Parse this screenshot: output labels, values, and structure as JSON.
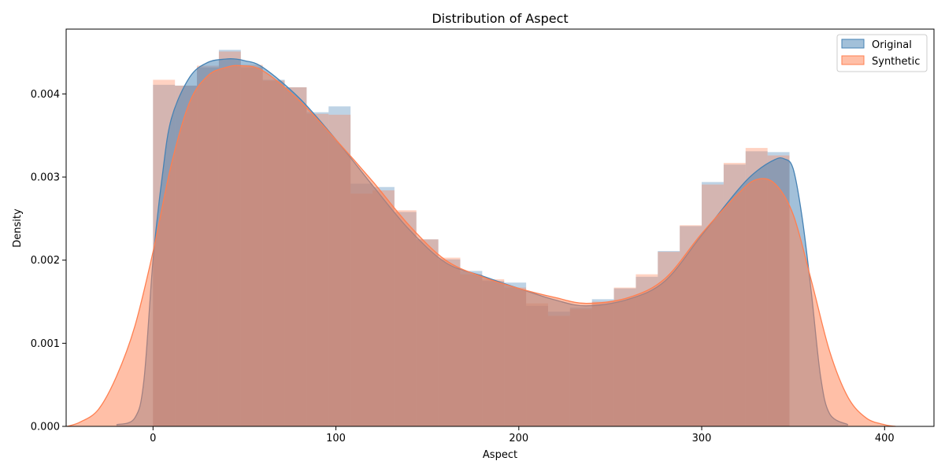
{
  "chart_data": {
    "type": "area",
    "title": "Distribution of Aspect",
    "xlabel": "Aspect",
    "ylabel": "Density",
    "xlim": [
      -47.5,
      427
    ],
    "ylim": [
      0,
      0.00478
    ],
    "xticks": [
      0,
      100,
      200,
      300,
      400
    ],
    "yticks": [
      0.0,
      0.001,
      0.002,
      0.003,
      0.004
    ],
    "ytick_labels": [
      "0.000",
      "0.001",
      "0.002",
      "0.003",
      "0.004"
    ],
    "legend_position": "top-right",
    "grid": false,
    "bin_edges": [
      0,
      12,
      24,
      36,
      48,
      60,
      72,
      84,
      96,
      108,
      120,
      132,
      144,
      156,
      168,
      180,
      192,
      204,
      216,
      228,
      240,
      252,
      264,
      276,
      288,
      300,
      312,
      324,
      336,
      348,
      360
    ],
    "series": [
      {
        "name": "Original",
        "color": "#4682b4",
        "hist_values": [
          0.00411,
          0.0041,
          0.00432,
          0.00453,
          0.00432,
          0.00417,
          0.00408,
          0.00378,
          0.00385,
          0.00292,
          0.00288,
          0.00258,
          0.00225,
          0.00201,
          0.00187,
          0.00175,
          0.00173,
          0.00145,
          0.00138,
          0.00143,
          0.00153,
          0.00166,
          0.0018,
          0.00211,
          0.00241,
          0.00294,
          0.00315,
          0.00331,
          0.0033,
          0.0
        ],
        "kde": {
          "x": [
            -20,
            -10,
            -5,
            0,
            5,
            10,
            20,
            30,
            40,
            45,
            50,
            60,
            80,
            100,
            120,
            140,
            160,
            180,
            200,
            220,
            237,
            260,
            280,
            300,
            320,
            330,
            340,
            345,
            350,
            355,
            360,
            365,
            370,
            380
          ],
          "y": [
            2e-05,
            0.0001,
            0.00055,
            0.002,
            0.003,
            0.0037,
            0.0042,
            0.00438,
            0.00442,
            0.00442,
            0.0044,
            0.00432,
            0.00395,
            0.00345,
            0.0029,
            0.00237,
            0.00197,
            0.00181,
            0.00166,
            0.00152,
            0.00145,
            0.00153,
            0.00175,
            0.0023,
            0.00285,
            0.00307,
            0.00321,
            0.00322,
            0.0031,
            0.0025,
            0.0016,
            0.0006,
            0.00015,
            2e-05
          ]
        }
      },
      {
        "name": "Synthetic",
        "color": "#ff7f50",
        "hist_values": [
          0.00417,
          0.0041,
          0.00434,
          0.00451,
          0.00435,
          0.00416,
          0.00408,
          0.00376,
          0.00375,
          0.0028,
          0.00284,
          0.0026,
          0.00225,
          0.00203,
          0.00183,
          0.00177,
          0.00167,
          0.00148,
          0.00133,
          0.00141,
          0.0015,
          0.00167,
          0.00183,
          0.0021,
          0.00242,
          0.00291,
          0.00317,
          0.00335,
          0.00326,
          0.0
        ],
        "kde": {
          "x": [
            -47,
            -40,
            -30,
            -20,
            -10,
            0,
            10,
            20,
            30,
            40,
            48,
            60,
            80,
            100,
            120,
            140,
            160,
            180,
            200,
            220,
            237,
            260,
            280,
            300,
            320,
            330,
            340,
            350,
            360,
            370,
            380,
            390,
            400,
            406
          ],
          "y": [
            0.0,
            5e-05,
            0.0002,
            0.0006,
            0.0012,
            0.0021,
            0.00315,
            0.0039,
            0.00422,
            0.00432,
            0.00434,
            0.00428,
            0.00392,
            0.00345,
            0.00295,
            0.00242,
            0.002,
            0.0018,
            0.00166,
            0.00155,
            0.00148,
            0.00155,
            0.00178,
            0.00232,
            0.0028,
            0.00297,
            0.00292,
            0.00255,
            0.00175,
            0.0009,
            0.00035,
            0.0001,
            2e-05,
            0.0
          ]
        }
      }
    ]
  }
}
